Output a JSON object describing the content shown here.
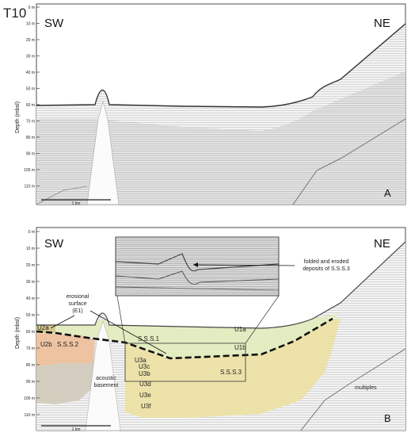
{
  "figure_id": "T10",
  "panels": [
    {
      "id": "A",
      "orientation_left": "SW",
      "orientation_right": "NE",
      "axis_label": "Depth (mbsl)",
      "depth_ticks": [
        "0 m",
        "10 m",
        "20 m",
        "30 m",
        "40 m",
        "50 m",
        "60 m",
        "70 m",
        "80 m",
        "90 m",
        "100 m",
        "110 m"
      ],
      "scale_bar": "1 km",
      "panel_letter": "A"
    },
    {
      "id": "B",
      "orientation_left": "SW",
      "orientation_right": "NE",
      "axis_label": "Depth (mbsl)",
      "depth_ticks": [
        "0 m",
        "10 m",
        "20 m",
        "30 m",
        "40 m",
        "50 m",
        "60 m",
        "70 m",
        "80 m",
        "90 m",
        "100 m",
        "110 m"
      ],
      "scale_bar": "1 km",
      "panel_letter": "B",
      "units": [
        "U1a",
        "U1b",
        "U2a",
        "U2b",
        "U3a",
        "U3b",
        "U3c",
        "U3d",
        "U3e",
        "U3f"
      ],
      "sequences": [
        "S.S.S.1",
        "S.S.S.2",
        "S.S.S.3"
      ],
      "labels": {
        "erosional_line1": "erosional",
        "erosional_line2": "surface",
        "erosional_line3": "(E1)",
        "acoustic_line1": "acoustic",
        "acoustic_line2": "basement",
        "multiples": "multiples",
        "folded_line1": "folded and eroded",
        "folded_line2": "deposits of S.S.S.3"
      },
      "colors": {
        "U1": "#e3ecbf",
        "U2b": "#eebf9a",
        "U2_lower": "#cfc9b7",
        "U3": "#ece09e",
        "erosional_surface": "#111111"
      }
    }
  ]
}
